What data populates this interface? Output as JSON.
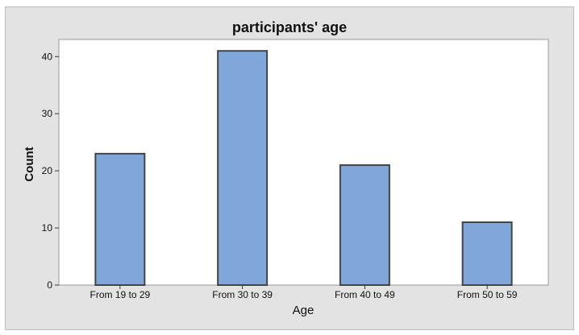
{
  "chart_data": {
    "type": "bar",
    "title": "participants' age",
    "xlabel": "Age",
    "ylabel": "Count",
    "categories": [
      "From 19 to 29",
      "From 30 to 39",
      "From 40 to 49",
      "From 50 to 59"
    ],
    "values": [
      23,
      41,
      21,
      11
    ],
    "ylim": [
      0,
      43
    ],
    "yticks": [
      0,
      10,
      20,
      30,
      40
    ],
    "grid": false,
    "colors": {
      "bar_fill": "#7fa7d9",
      "bar_stroke": "#444444",
      "frame_bg": "#e3e3e3",
      "plot_bg": "#ffffff"
    }
  }
}
